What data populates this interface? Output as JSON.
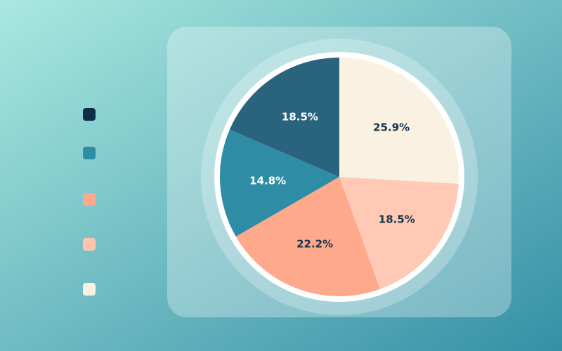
{
  "chart_data": {
    "type": "pie",
    "values": [
      25.9,
      18.5,
      22.2,
      14.8,
      18.5
    ],
    "value_labels": [
      "25.9%",
      "18.5%",
      "22.2%",
      "14.8%",
      "18.5%"
    ],
    "colors": [
      "#f9f1e1",
      "#ffc9b6",
      "#ffa98c",
      "#2e8ca5",
      "#2a637d"
    ],
    "legend_colors": [
      "#0e2f47",
      "#2e8ca5",
      "#ffa98c",
      "#ffc4b0",
      "#f7f2e1"
    ]
  }
}
